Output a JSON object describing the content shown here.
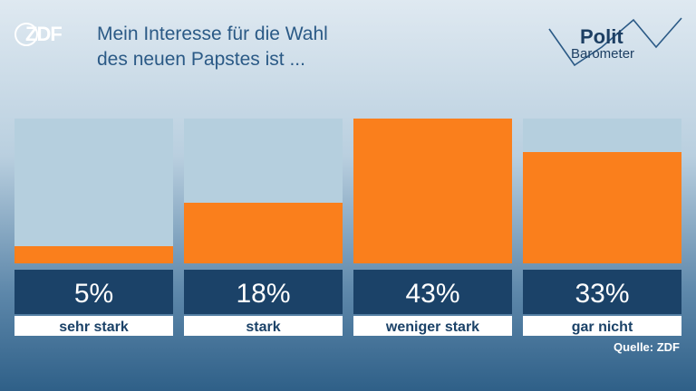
{
  "brand": {
    "zdf_logo": "ZDF",
    "polit_line1": "Polit",
    "polit_line2": "Barometer"
  },
  "title_line1": "Mein Interesse für die Wahl",
  "title_line2": "des neuen Papstes ist ...",
  "source": "Quelle: ZDF",
  "colors": {
    "bar": "#fa7f1c",
    "track": "#b5cfde",
    "value_box": "#1b4268",
    "label_box": "#ffffff",
    "title": "#2b5a86"
  },
  "chart_data": {
    "type": "bar",
    "categories": [
      "sehr stark",
      "stark",
      "weniger stark",
      "gar nicht"
    ],
    "values": [
      5,
      18,
      43,
      33
    ],
    "value_labels": [
      "5%",
      "18%",
      "43%",
      "33%"
    ],
    "ylim": [
      0,
      43
    ],
    "title": "Mein Interesse für die Wahl des neuen Papstes ist ...",
    "xlabel": "",
    "ylabel": ""
  }
}
